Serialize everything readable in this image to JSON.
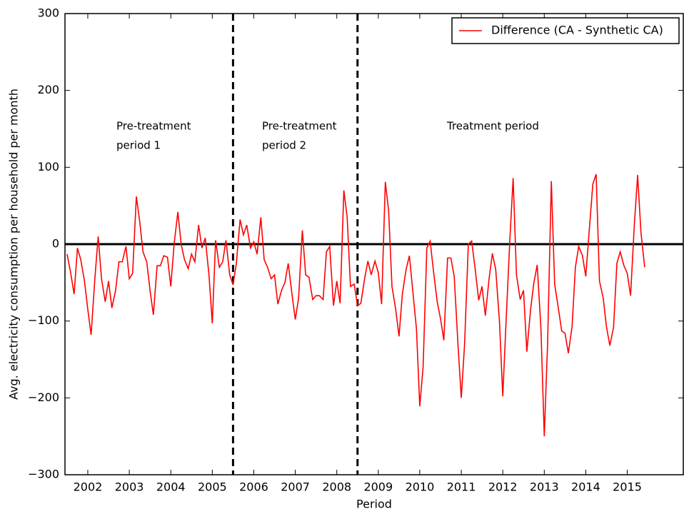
{
  "chart_data": {
    "type": "line",
    "xlabel": "Period",
    "ylabel": "Avg. electricity consumption per household per month",
    "xlim": [
      2001.45,
      2016.35
    ],
    "xticks": [
      2002,
      2003,
      2004,
      2005,
      2006,
      2007,
      2008,
      2009,
      2010,
      2011,
      2012,
      2013,
      2014,
      2015
    ],
    "ylim": [
      -300,
      300
    ],
    "yticks": [
      {
        "value": -300,
        "label": "−300"
      },
      {
        "value": -200,
        "label": "−200"
      },
      {
        "value": -100,
        "label": "−100"
      },
      0,
      100,
      200,
      300
    ],
    "legend": "upper right",
    "hline": 0,
    "vlines": [
      2005.5,
      2008.5
    ],
    "annotations": [
      {
        "lines": [
          "Pre-treatment",
          "period 1"
        ]
      },
      {
        "lines": [
          "Pre-treatment",
          "period 2"
        ]
      },
      {
        "lines": [
          "Treatment period"
        ]
      }
    ],
    "series": [
      {
        "name": "Difference (CA - Synthetic CA)",
        "color": "#ff0000",
        "x": [
          2001.5,
          2001.58,
          2001.67,
          2001.75,
          2001.83,
          2001.92,
          2002.0,
          2002.08,
          2002.17,
          2002.25,
          2002.33,
          2002.42,
          2002.5,
          2002.58,
          2002.67,
          2002.75,
          2002.83,
          2002.92,
          2003.0,
          2003.08,
          2003.17,
          2003.25,
          2003.33,
          2003.42,
          2003.5,
          2003.58,
          2003.67,
          2003.75,
          2003.83,
          2003.92,
          2004.0,
          2004.08,
          2004.17,
          2004.25,
          2004.33,
          2004.42,
          2004.5,
          2004.58,
          2004.67,
          2004.75,
          2004.83,
          2004.92,
          2005.0,
          2005.08,
          2005.17,
          2005.25,
          2005.33,
          2005.42,
          2005.5,
          2005.58,
          2005.67,
          2005.75,
          2005.83,
          2005.92,
          2006.0,
          2006.08,
          2006.17,
          2006.25,
          2006.33,
          2006.42,
          2006.5,
          2006.58,
          2006.67,
          2006.75,
          2006.83,
          2006.92,
          2007.0,
          2007.08,
          2007.17,
          2007.25,
          2007.33,
          2007.42,
          2007.5,
          2007.58,
          2007.67,
          2007.75,
          2007.83,
          2007.92,
          2008.0,
          2008.08,
          2008.17,
          2008.25,
          2008.33,
          2008.42,
          2008.5,
          2008.58,
          2008.67,
          2008.75,
          2008.83,
          2008.92,
          2009.0,
          2009.08,
          2009.17,
          2009.25,
          2009.33,
          2009.42,
          2009.5,
          2009.58,
          2009.67,
          2009.75,
          2009.83,
          2009.92,
          2010.0,
          2010.08,
          2010.17,
          2010.25,
          2010.33,
          2010.42,
          2010.5,
          2010.58,
          2010.67,
          2010.75,
          2010.83,
          2010.92,
          2011.0,
          2011.08,
          2011.17,
          2011.25,
          2011.33,
          2011.42,
          2011.5,
          2011.58,
          2011.67,
          2011.75,
          2011.83,
          2011.92,
          2012.0,
          2012.08,
          2012.17,
          2012.25,
          2012.33,
          2012.42,
          2012.5,
          2012.58,
          2012.67,
          2012.75,
          2012.83,
          2012.92,
          2013.0,
          2013.08,
          2013.17,
          2013.25,
          2013.33,
          2013.42,
          2013.5,
          2013.58,
          2013.67,
          2013.75,
          2013.83,
          2013.92,
          2014.0,
          2014.08,
          2014.17,
          2014.25,
          2014.33,
          2014.42,
          2014.5,
          2014.58,
          2014.67,
          2014.75,
          2014.83,
          2014.92,
          2015.0,
          2015.08,
          2015.17,
          2015.25,
          2015.33,
          2015.42
        ],
        "values": [
          -13,
          -35,
          -65,
          -5,
          -20,
          -48,
          -85,
          -118,
          -45,
          10,
          -45,
          -75,
          -48,
          -83,
          -60,
          -23,
          -23,
          -3,
          -45,
          -38,
          62,
          30,
          -10,
          -23,
          -60,
          -92,
          -28,
          -28,
          -15,
          -17,
          -55,
          0,
          42,
          0,
          -20,
          -32,
          -13,
          -23,
          25,
          -5,
          8,
          -40,
          -103,
          5,
          -30,
          -23,
          5,
          -40,
          -53,
          -25,
          32,
          12,
          25,
          -5,
          3,
          -13,
          35,
          -20,
          -30,
          -45,
          -40,
          -78,
          -60,
          -50,
          -25,
          -65,
          -98,
          -70,
          18,
          -40,
          -43,
          -72,
          -67,
          -67,
          -72,
          -10,
          -3,
          -80,
          -48,
          -77,
          70,
          35,
          -55,
          -52,
          -80,
          -77,
          -45,
          -22,
          -40,
          -22,
          -37,
          -78,
          81,
          43,
          -55,
          -85,
          -120,
          -65,
          -33,
          -15,
          -60,
          -110,
          -211,
          -160,
          -5,
          4,
          -35,
          -75,
          -97,
          -125,
          -18,
          -18,
          -42,
          -130,
          -200,
          -130,
          0,
          4,
          -30,
          -73,
          -55,
          -93,
          -45,
          -12,
          -33,
          -100,
          -198,
          -100,
          5,
          86,
          -40,
          -72,
          -60,
          -140,
          -85,
          -50,
          -27,
          -110,
          -250,
          -130,
          82,
          -52,
          -80,
          -113,
          -116,
          -142,
          -107,
          -30,
          -3,
          -15,
          -42,
          15,
          78,
          91,
          -48,
          -70,
          -108,
          -132,
          -108,
          -25,
          -10,
          -28,
          -38,
          -67,
          25,
          90,
          15,
          -30
        ]
      }
    ]
  }
}
